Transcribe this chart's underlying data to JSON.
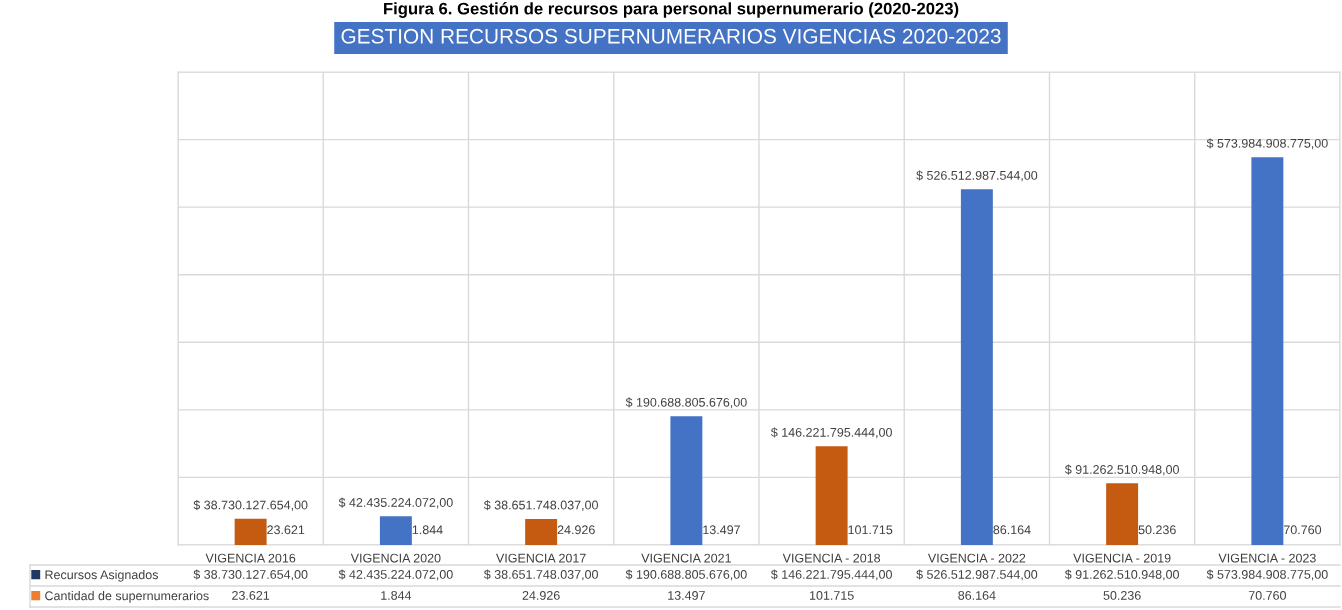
{
  "chart_data": {
    "type": "bar",
    "title": "Figura 6. Gestión de recursos para personal supernumerario (2020-2023)",
    "subtitle": "GESTION RECURSOS SUPERNUMERARIOS VIGENCIAS 2020-2023",
    "categories": [
      "VIGENCIA 2016",
      "VIGENCIA 2020",
      "VIGENCIA 2017",
      "VIGENCIA 2021",
      "VIGENCIA - 2018",
      "VIGENCIA - 2022",
      "VIGENCIA - 2019",
      "VIGENCIA - 2023"
    ],
    "series": [
      {
        "name": "Recursos Asignados",
        "color": "#203864",
        "colors": [
          "#c55a11",
          "#4472c4",
          "#c55a11",
          "#4472c4",
          "#c55a11",
          "#4472c4",
          "#c55a11",
          "#4472c4"
        ],
        "values": [
          38730127654.0,
          42435224072.0,
          38651748037.0,
          190688805676.0,
          146221795444.0,
          526512987544.0,
          91262510948.0,
          573984908775.0
        ],
        "value_labels": [
          "$ 38.730.127.654,00",
          "$ 42.435.224.072,00",
          "$ 38.651.748.037,00",
          "$ 190.688.805.676,00",
          "$ 146.221.795.444,00",
          "$ 526.512.987.544,00",
          "$ 91.262.510.948,00",
          "$ 573.984.908.775,00"
        ]
      },
      {
        "name": "Cantidad de supernumerarios",
        "color": "#ed7d31",
        "values": [
          23621,
          1844,
          24926,
          13497,
          101715,
          86164,
          50236,
          70760
        ],
        "value_labels": [
          "23.621",
          "1.844",
          "24.926",
          "13.497",
          "101.715",
          "86.164",
          "50.236",
          "70.760"
        ]
      }
    ],
    "ylim": [
      0,
      700000000000
    ],
    "yticks": [
      {
        "value": 0,
        "label": null
      },
      {
        "value": 100000000000,
        "label": null
      },
      {
        "value": 200000000000,
        "label": null
      },
      {
        "value": 300000000000,
        "label": null
      },
      {
        "value": 400000000000,
        "label": null
      },
      {
        "value": 500000000000,
        "label": null
      },
      {
        "value": 600000000000,
        "label": null
      },
      {
        "value": 700000000000,
        "label": null
      }
    ],
    "tick_labels": "x",
    "grid": true,
    "legend": "bottom left"
  }
}
